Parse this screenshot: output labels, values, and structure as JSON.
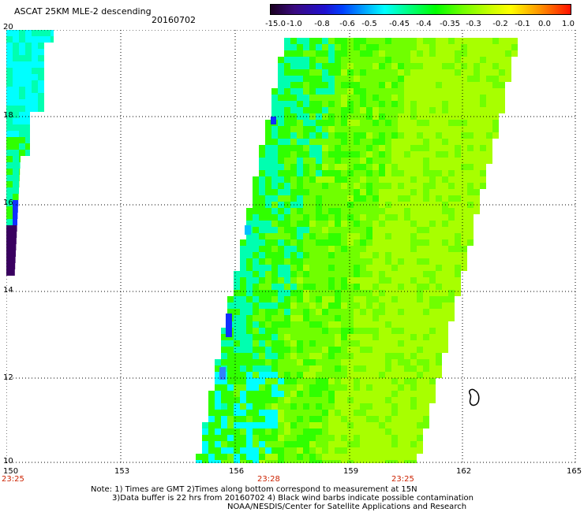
{
  "header": {
    "title": "ASCAT 25KM MLE-2 descending",
    "date": "20160702"
  },
  "colorbar": {
    "labels": [
      "-15.0",
      "-1.0",
      "-0.8",
      "-0.6",
      "-0.5",
      "-0.45",
      "-0.4",
      "-0.35",
      "-0.3",
      "-0.2",
      "-0.1",
      "0.0",
      "1.0"
    ],
    "colors": [
      "#2a003a",
      "#3a0a80",
      "#3a18c0",
      "#0040ff",
      "#00a0ff",
      "#00ffff",
      "#00ff90",
      "#00ff00",
      "#60ff00",
      "#b0ff00",
      "#ffff00",
      "#ff9000",
      "#ff2000"
    ]
  },
  "map": {
    "lat_labels": [
      "20",
      "18",
      "16",
      "14",
      "12",
      "10"
    ],
    "lon_labels": [
      "150",
      "153",
      "156",
      "159",
      "162",
      "165"
    ],
    "time_labels": [
      "23:25",
      "23:28",
      "23:25"
    ],
    "colors": {
      "grid": "#000000",
      "wind_high": "#a8ff00",
      "wind_mid": "#70ff00",
      "wind_low": "#30ff00",
      "cyan": "#00ffb0",
      "light_cyan": "#00ffff",
      "blue": "#1030ff",
      "dark": "#3a0060"
    }
  },
  "footer": {
    "line1": "Note: 1) Times are GMT 2)Times along bottom correspond to measurement at 15N",
    "line2": "3)Data buffer is 22 hrs from 20160702 4) Black wind barbs indicate possible contamination",
    "line3": "NOAA/NESDIS/Center for Satellite Applications and Research"
  }
}
